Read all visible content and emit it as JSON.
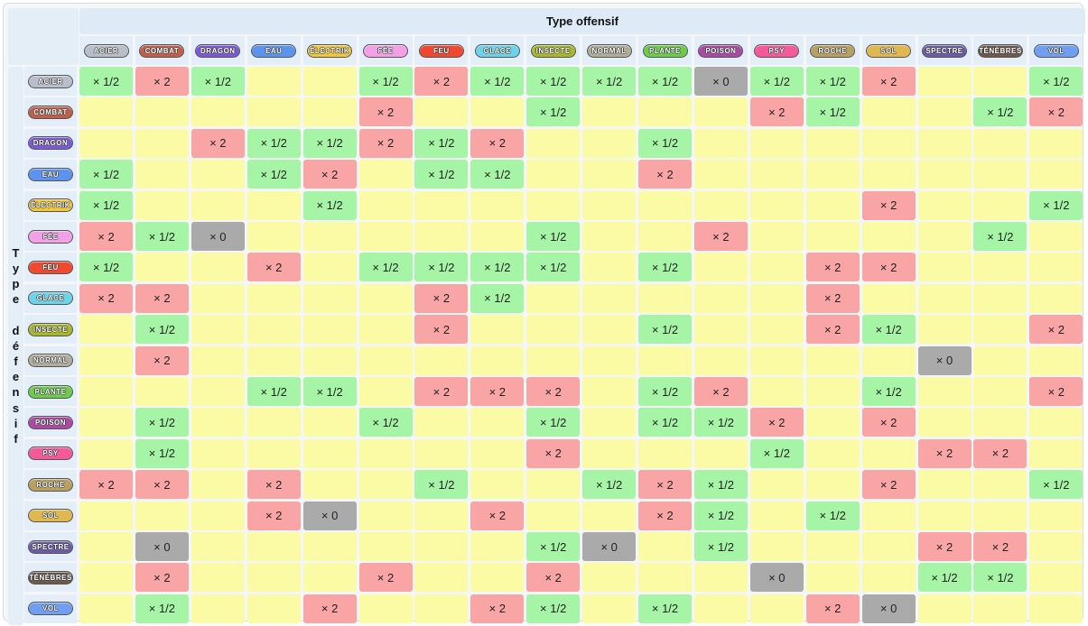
{
  "table": {
    "attack_header": "Type offensif",
    "defense_header": "Type défensif",
    "types": [
      {
        "label": "ACIER",
        "color": "#b8bfca"
      },
      {
        "label": "COMBAT",
        "color": "#c0604a"
      },
      {
        "label": "DRAGON",
        "color": "#7a5ad8"
      },
      {
        "label": "EAU",
        "color": "#5b93ee"
      },
      {
        "label": "ÉLECTRIK",
        "color": "#f2c83a"
      },
      {
        "label": "FÉE",
        "color": "#f4a0e8"
      },
      {
        "label": "FEU",
        "color": "#ef4a30"
      },
      {
        "label": "GLACE",
        "color": "#6bd4e8"
      },
      {
        "label": "INSECTE",
        "color": "#a8b82a"
      },
      {
        "label": "NORMAL",
        "color": "#b0ad9a"
      },
      {
        "label": "PLANTE",
        "color": "#6acd4c"
      },
      {
        "label": "POISON",
        "color": "#a84aa6"
      },
      {
        "label": "PSY",
        "color": "#f45a9a"
      },
      {
        "label": "ROCHE",
        "color": "#b8a060"
      },
      {
        "label": "SOL",
        "color": "#e0b850"
      },
      {
        "label": "SPECTRE",
        "color": "#6c5ca8"
      },
      {
        "label": "TÉNÈBRES",
        "color": "#6e5a4c"
      },
      {
        "label": "VOL",
        "color": "#6f9ef2"
      }
    ],
    "value_labels": {
      "h": "× 1/2",
      "d": "× 2",
      "z": "× 0",
      "n": ""
    },
    "value_colors": {
      "n": "#fbfba5",
      "h": "#a6f5a6",
      "d": "#f9a5a5",
      "z": "#aaaaaa"
    },
    "rows": [
      [
        "h",
        "d",
        "h",
        "n",
        "n",
        "h",
        "d",
        "h",
        "h",
        "h",
        "h",
        "z",
        "h",
        "h",
        "d",
        "n",
        "n",
        "h"
      ],
      [
        "n",
        "n",
        "n",
        "n",
        "n",
        "d",
        "n",
        "n",
        "h",
        "n",
        "n",
        "n",
        "d",
        "h",
        "n",
        "n",
        "h",
        "d"
      ],
      [
        "n",
        "n",
        "d",
        "h",
        "h",
        "d",
        "h",
        "d",
        "n",
        "n",
        "h",
        "n",
        "n",
        "n",
        "n",
        "n",
        "n",
        "n"
      ],
      [
        "h",
        "n",
        "n",
        "h",
        "d",
        "n",
        "h",
        "h",
        "n",
        "n",
        "d",
        "n",
        "n",
        "n",
        "n",
        "n",
        "n",
        "n"
      ],
      [
        "h",
        "n",
        "n",
        "n",
        "h",
        "n",
        "n",
        "n",
        "n",
        "n",
        "n",
        "n",
        "n",
        "n",
        "d",
        "n",
        "n",
        "h"
      ],
      [
        "d",
        "h",
        "z",
        "n",
        "n",
        "n",
        "n",
        "n",
        "h",
        "n",
        "n",
        "d",
        "n",
        "n",
        "n",
        "n",
        "h",
        "n"
      ],
      [
        "h",
        "n",
        "n",
        "d",
        "n",
        "h",
        "h",
        "h",
        "h",
        "n",
        "h",
        "n",
        "n",
        "d",
        "d",
        "n",
        "n",
        "n"
      ],
      [
        "d",
        "d",
        "n",
        "n",
        "n",
        "n",
        "d",
        "h",
        "n",
        "n",
        "n",
        "n",
        "n",
        "d",
        "n",
        "n",
        "n",
        "n"
      ],
      [
        "n",
        "h",
        "n",
        "n",
        "n",
        "n",
        "d",
        "n",
        "n",
        "n",
        "h",
        "n",
        "n",
        "d",
        "h",
        "n",
        "n",
        "d"
      ],
      [
        "n",
        "d",
        "n",
        "n",
        "n",
        "n",
        "n",
        "n",
        "n",
        "n",
        "n",
        "n",
        "n",
        "n",
        "n",
        "z",
        "n",
        "n"
      ],
      [
        "n",
        "n",
        "n",
        "h",
        "h",
        "n",
        "d",
        "d",
        "d",
        "n",
        "h",
        "d",
        "n",
        "n",
        "h",
        "n",
        "n",
        "d"
      ],
      [
        "n",
        "h",
        "n",
        "n",
        "n",
        "h",
        "n",
        "n",
        "h",
        "n",
        "h",
        "h",
        "d",
        "n",
        "d",
        "n",
        "n",
        "n"
      ],
      [
        "n",
        "h",
        "n",
        "n",
        "n",
        "n",
        "n",
        "n",
        "d",
        "n",
        "n",
        "n",
        "h",
        "n",
        "n",
        "d",
        "d",
        "n"
      ],
      [
        "d",
        "d",
        "n",
        "d",
        "n",
        "n",
        "h",
        "n",
        "n",
        "h",
        "d",
        "h",
        "n",
        "n",
        "d",
        "n",
        "n",
        "h"
      ],
      [
        "n",
        "n",
        "n",
        "d",
        "z",
        "n",
        "n",
        "d",
        "n",
        "n",
        "d",
        "h",
        "n",
        "h",
        "n",
        "n",
        "n",
        "n"
      ],
      [
        "n",
        "z",
        "n",
        "n",
        "n",
        "n",
        "n",
        "n",
        "h",
        "z",
        "n",
        "h",
        "n",
        "n",
        "n",
        "d",
        "d",
        "n"
      ],
      [
        "n",
        "d",
        "n",
        "n",
        "n",
        "d",
        "n",
        "n",
        "d",
        "n",
        "n",
        "n",
        "z",
        "n",
        "n",
        "h",
        "h",
        "n"
      ],
      [
        "n",
        "h",
        "n",
        "n",
        "d",
        "n",
        "n",
        "d",
        "h",
        "n",
        "h",
        "n",
        "n",
        "d",
        "z",
        "n",
        "n",
        "n"
      ]
    ]
  }
}
